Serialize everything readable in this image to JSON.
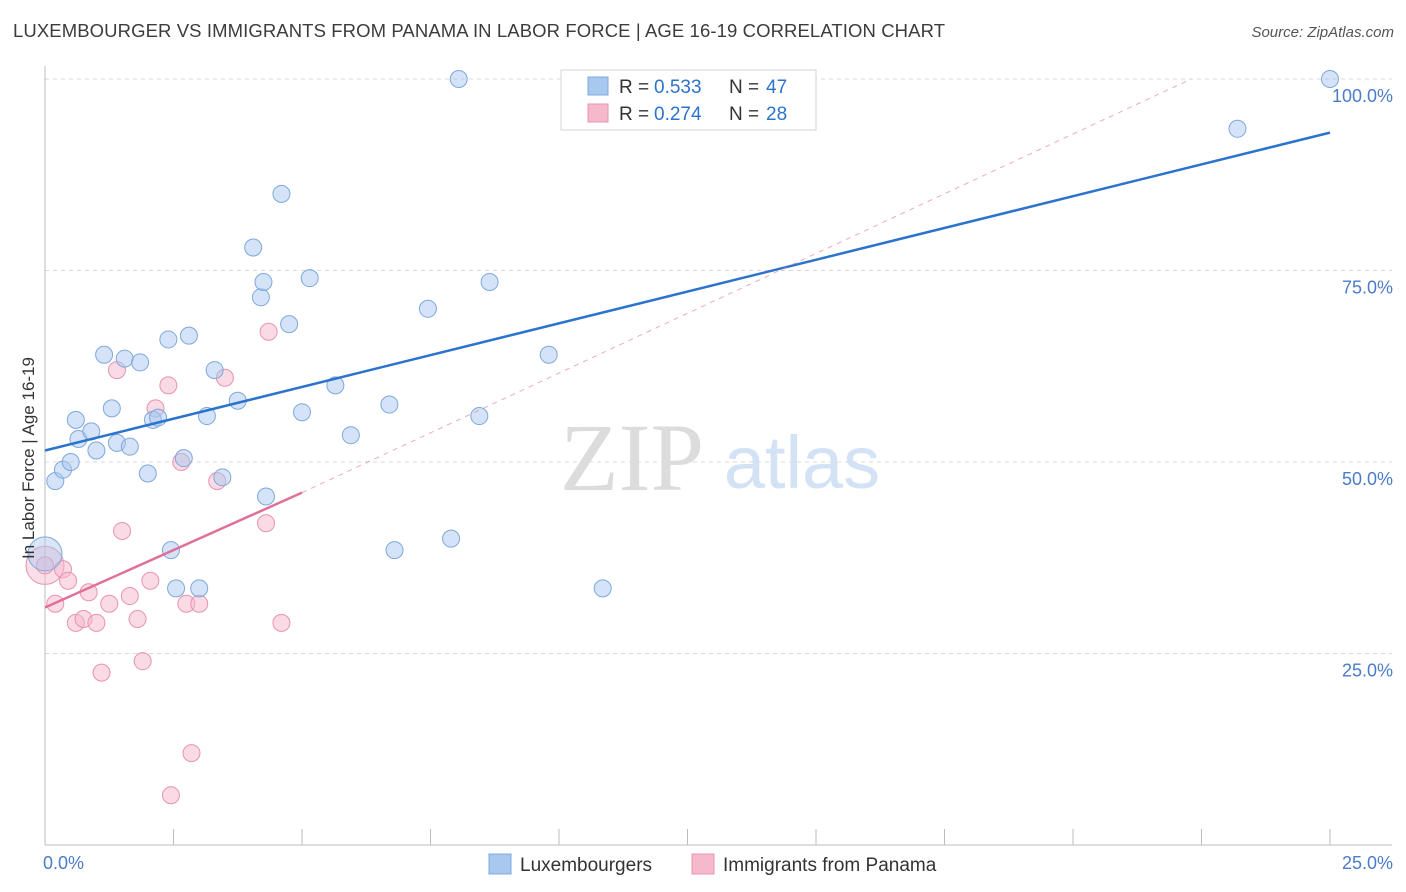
{
  "title": "LUXEMBOURGER VS IMMIGRANTS FROM PANAMA IN LABOR FORCE | AGE 16-19 CORRELATION CHART",
  "source": "Source: ZipAtlas.com",
  "watermark": {
    "zip": "ZIP",
    "atlas": "atlas"
  },
  "colors": {
    "blue_fill": "#a9c8ef",
    "blue_stroke": "#7fa8dc",
    "blue_line": "#2b73cc",
    "pink_fill": "#f6b8cb",
    "pink_stroke": "#e993ad",
    "pink_line": "#e0709a",
    "axis_label": "#4a7cc9",
    "grid": "#d8d8d8"
  },
  "chart_data": {
    "type": "scatter",
    "ylabel": "In Labor Force | Age 16-19",
    "xlim": [
      0,
      25
    ],
    "ylim": [
      0,
      100
    ],
    "x_tick_labels": [
      "0.0%",
      "25.0%"
    ],
    "y_ticks": [
      25,
      50,
      75,
      100
    ],
    "y_tick_labels": [
      "25.0%",
      "50.0%",
      "75.0%",
      "100.0%"
    ],
    "legend_stats": [
      {
        "r_label": "R =",
        "r": "0.533",
        "n_label": "N =",
        "n": "47"
      },
      {
        "r_label": "R =",
        "r": "0.274",
        "n_label": "N =",
        "n": "28"
      }
    ],
    "series": [
      {
        "name": "Luxembourgers",
        "color": "#a9c8ef",
        "points": [
          [
            0.2,
            47.5
          ],
          [
            0.35,
            49
          ],
          [
            0.5,
            50
          ],
          [
            0.6,
            55.5
          ],
          [
            0.65,
            53
          ],
          [
            0.9,
            54
          ],
          [
            1.0,
            51.5
          ],
          [
            1.15,
            64
          ],
          [
            1.3,
            57
          ],
          [
            1.4,
            52.5
          ],
          [
            1.55,
            63.5
          ],
          [
            1.65,
            52
          ],
          [
            1.85,
            63
          ],
          [
            2.0,
            48.5
          ],
          [
            2.1,
            55.5
          ],
          [
            2.2,
            55.8
          ],
          [
            2.4,
            66
          ],
          [
            2.45,
            38.5
          ],
          [
            2.55,
            33.5
          ],
          [
            2.7,
            50.5
          ],
          [
            2.8,
            66.5
          ],
          [
            3.0,
            33.5
          ],
          [
            3.15,
            56
          ],
          [
            3.3,
            62
          ],
          [
            3.45,
            48
          ],
          [
            3.75,
            58
          ],
          [
            4.05,
            78
          ],
          [
            4.2,
            71.5
          ],
          [
            4.25,
            73.5
          ],
          [
            4.3,
            45.5
          ],
          [
            4.6,
            85
          ],
          [
            4.75,
            68
          ],
          [
            5.0,
            56.5
          ],
          [
            5.15,
            74
          ],
          [
            5.65,
            60
          ],
          [
            5.95,
            53.5
          ],
          [
            6.7,
            57.5
          ],
          [
            6.8,
            38.5
          ],
          [
            7.45,
            70
          ],
          [
            7.9,
            40
          ],
          [
            8.05,
            100
          ],
          [
            8.45,
            56
          ],
          [
            8.65,
            73.5
          ],
          [
            9.8,
            64
          ],
          [
            10.85,
            33.5
          ],
          [
            23.2,
            93.5
          ],
          [
            25.0,
            100
          ]
        ]
      },
      {
        "name": "Immigrants from Panama",
        "color": "#f6b8cb",
        "points": [
          [
            0.0,
            36.5
          ],
          [
            0.2,
            31.5
          ],
          [
            0.35,
            36
          ],
          [
            0.45,
            34.5
          ],
          [
            0.6,
            29
          ],
          [
            0.75,
            29.5
          ],
          [
            0.85,
            33
          ],
          [
            1.0,
            29
          ],
          [
            1.1,
            22.5
          ],
          [
            1.25,
            31.5
          ],
          [
            1.4,
            62
          ],
          [
            1.5,
            41
          ],
          [
            1.65,
            32.5
          ],
          [
            1.8,
            29.5
          ],
          [
            1.9,
            24
          ],
          [
            2.05,
            34.5
          ],
          [
            2.15,
            57
          ],
          [
            2.4,
            60
          ],
          [
            2.45,
            6.5
          ],
          [
            2.65,
            50
          ],
          [
            2.75,
            31.5
          ],
          [
            2.85,
            12
          ],
          [
            3.0,
            31.5
          ],
          [
            3.35,
            47.5
          ],
          [
            3.5,
            61
          ],
          [
            4.3,
            42
          ],
          [
            4.35,
            67
          ],
          [
            4.6,
            29
          ]
        ]
      }
    ],
    "trend_lines": [
      {
        "series": "Luxembourgers",
        "x": [
          0,
          25
        ],
        "y": [
          51.5,
          93
        ]
      },
      {
        "series": "Immigrants from Panama",
        "x": [
          0,
          5
        ],
        "y": [
          31,
          46
        ]
      },
      {
        "series": "Immigrants from Panama (extrapolated)",
        "x": [
          5,
          22.3
        ],
        "y": [
          46,
          100
        ]
      }
    ],
    "large_points": [
      {
        "series": "Luxembourgers",
        "x": 0.0,
        "y": 38
      },
      {
        "series": "Immigrants from Panama",
        "x": 0.0,
        "y": 36.5
      }
    ]
  }
}
